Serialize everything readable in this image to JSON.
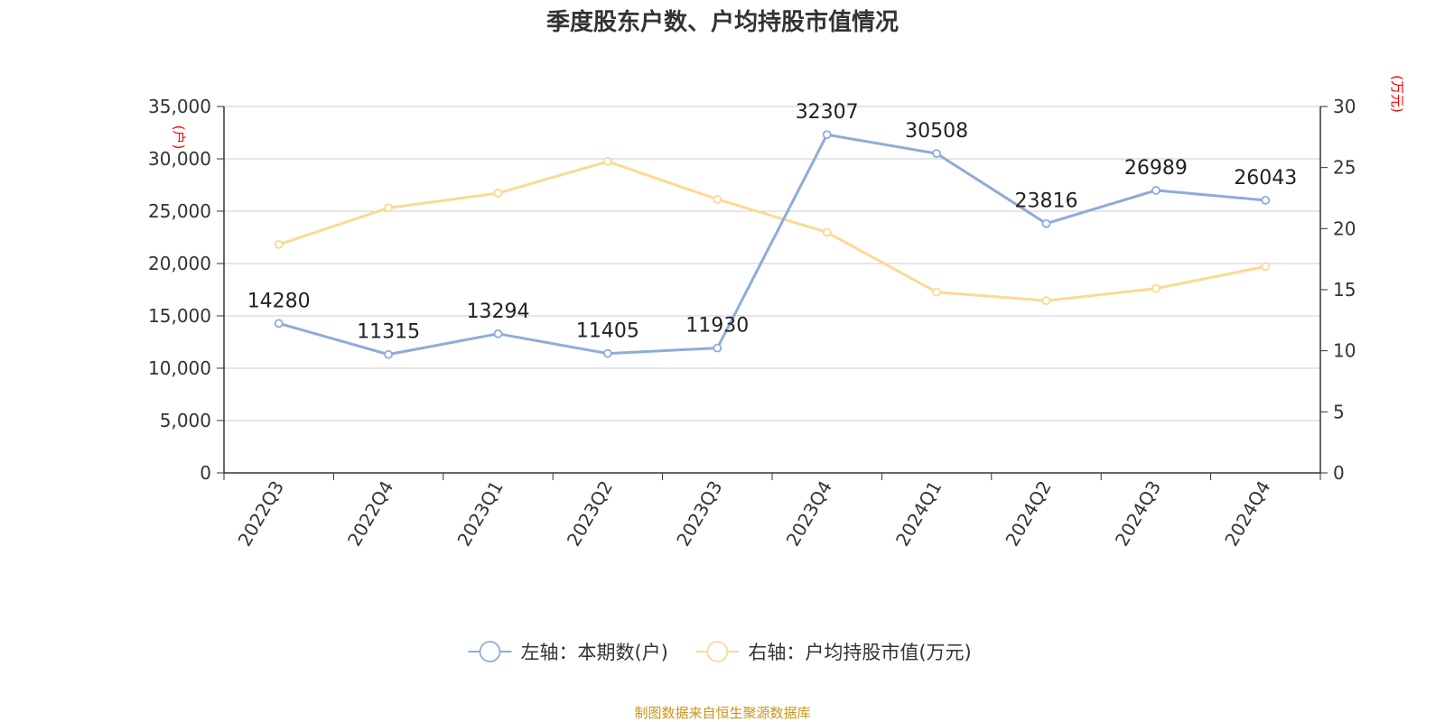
{
  "colors": {
    "series_left": "#8eacd9",
    "series_right": "#fcd994",
    "grid": "#cccccc",
    "axis": "#333333",
    "unit_label": "#ff0000",
    "source_note": "#c8961e"
  },
  "chart_data": {
    "type": "line",
    "title": "季度股东户数、户均持股市值情况",
    "categories": [
      "2022Q3",
      "2022Q4",
      "2023Q1",
      "2023Q2",
      "2023Q3",
      "2023Q4",
      "2024Q1",
      "2024Q2",
      "2024Q3",
      "2024Q4"
    ],
    "left_axis": {
      "unit": "(户)",
      "ylim": [
        0,
        35000
      ],
      "ticks": [
        0,
        5000,
        10000,
        15000,
        20000,
        25000,
        30000,
        35000
      ],
      "tick_labels": [
        "0",
        "5,000",
        "10,000",
        "15,000",
        "20,000",
        "25,000",
        "30,000",
        "35,000"
      ]
    },
    "right_axis": {
      "unit": "(万元)",
      "ylim": [
        0,
        30
      ],
      "ticks": [
        0,
        5,
        10,
        15,
        20,
        25,
        30
      ],
      "tick_labels": [
        "0",
        "5",
        "10",
        "15",
        "20",
        "25",
        "30"
      ]
    },
    "grid": true,
    "legend_position": "bottom",
    "series": [
      {
        "name": "左轴：本期数(户)",
        "axis": "left",
        "color_key": "series_left",
        "values": [
          14280,
          11315,
          13294,
          11405,
          11930,
          32307,
          30508,
          23816,
          26989,
          26043
        ],
        "data_labels": [
          "14280",
          "11315",
          "13294",
          "11405",
          "11930",
          "32307",
          "30508",
          "23816",
          "26989",
          "26043"
        ]
      },
      {
        "name": "右轴：户均持股市值(万元)",
        "axis": "right",
        "color_key": "series_right",
        "values": [
          18.7,
          21.7,
          22.9,
          25.5,
          22.4,
          19.7,
          14.8,
          14.1,
          15.1,
          16.9
        ]
      }
    ]
  },
  "source_note": "制图数据来自恒生聚源数据库"
}
